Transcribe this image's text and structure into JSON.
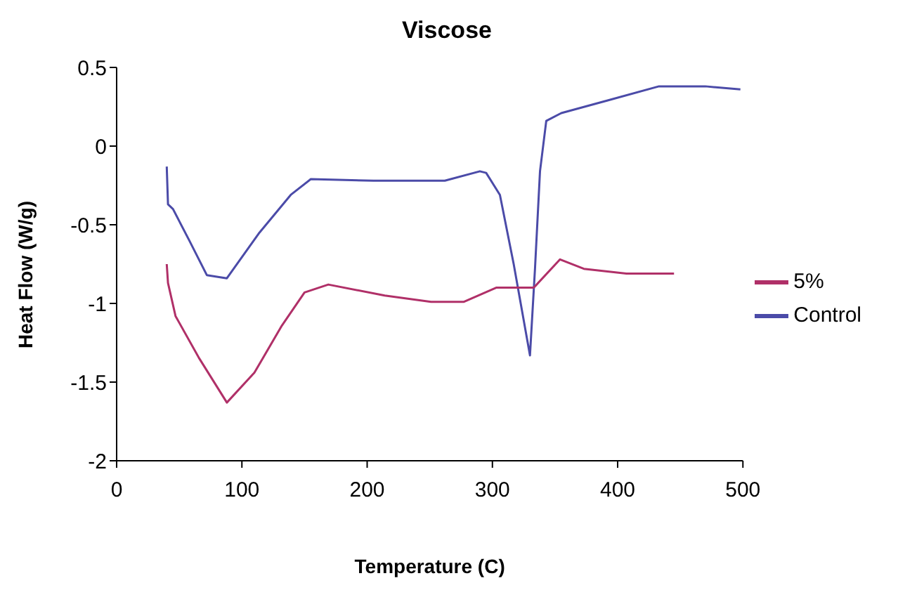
{
  "chart_data": {
    "type": "line",
    "title": "Viscose",
    "xlabel": "Temperature (C)",
    "ylabel": "Heat Flow (W/g)",
    "xlim": [
      0,
      500
    ],
    "xticks": [
      0,
      100,
      200,
      300,
      400,
      500
    ],
    "ylim": [
      -2,
      0.5
    ],
    "yticks": [
      -2,
      -1.5,
      -1,
      -0.5,
      0,
      0.5
    ],
    "grid": false,
    "legend": "right",
    "marker": "none",
    "line_style": "solid",
    "series": [
      {
        "name": "Control",
        "color": "#4b4ba8",
        "x": [
          40,
          41,
          45,
          58,
          72,
          88,
          114,
          139,
          155,
          205,
          262,
          290,
          295,
          306,
          317,
          330,
          334,
          338,
          343,
          355,
          392,
          433,
          470,
          498
        ],
        "values": [
          -0.13,
          -0.37,
          -0.4,
          -0.6,
          -0.82,
          -0.84,
          -0.55,
          -0.31,
          -0.21,
          -0.22,
          -0.22,
          -0.16,
          -0.17,
          -0.31,
          -0.75,
          -1.33,
          -0.78,
          -0.16,
          0.16,
          0.21,
          0.29,
          0.38,
          0.38,
          0.36
        ]
      },
      {
        "name": "5%",
        "color": "#b03068",
        "x": [
          40,
          41,
          47,
          66,
          88,
          110,
          132,
          150,
          169,
          214,
          251,
          277,
          303,
          333,
          354,
          373,
          407,
          445
        ],
        "values": [
          -0.75,
          -0.87,
          -1.08,
          -1.35,
          -1.63,
          -1.44,
          -1.14,
          -0.93,
          -0.88,
          -0.95,
          -0.99,
          -0.99,
          -0.9,
          -0.9,
          -0.72,
          -0.78,
          -0.81,
          -0.81
        ]
      }
    ]
  }
}
